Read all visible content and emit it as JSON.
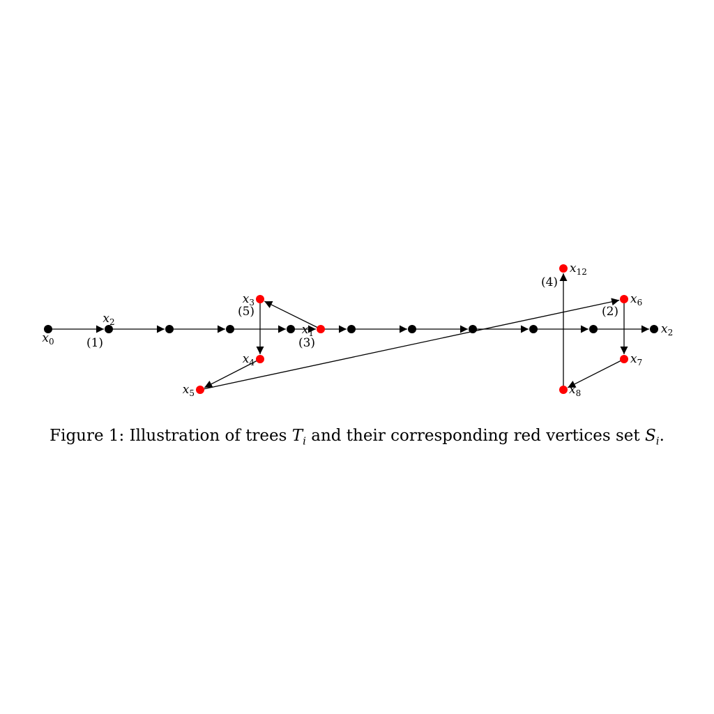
{
  "figure": {
    "caption_prefix": "Figure 1: Illustration of trees ",
    "caption_T": "T",
    "caption_T_sub": "i",
    "caption_middle": " and their corresponding red vertices set ",
    "caption_S": "S",
    "caption_S_sub": "i",
    "caption_suffix": "."
  },
  "colors": {
    "black_vertex": "#000000",
    "red_vertex": "#ff0000",
    "edge": "#000000"
  },
  "vertices": [
    {
      "id": "x0",
      "color": "black",
      "label": "x",
      "sub": "0"
    },
    {
      "id": "b1",
      "color": "black",
      "label": "x",
      "sub": "2"
    },
    {
      "id": "b2",
      "color": "black",
      "label": "",
      "sub": ""
    },
    {
      "id": "b3",
      "color": "black",
      "label": "",
      "sub": ""
    },
    {
      "id": "b4",
      "color": "black",
      "label": "",
      "sub": ""
    },
    {
      "id": "r1",
      "color": "red",
      "label": "x",
      "sub": "1"
    },
    {
      "id": "b5",
      "color": "black",
      "label": "",
      "sub": ""
    },
    {
      "id": "b6",
      "color": "black",
      "label": "",
      "sub": ""
    },
    {
      "id": "b7",
      "color": "black",
      "label": "",
      "sub": ""
    },
    {
      "id": "b8",
      "color": "black",
      "label": "",
      "sub": ""
    },
    {
      "id": "b9",
      "color": "black",
      "label": "",
      "sub": ""
    },
    {
      "id": "b10",
      "color": "black",
      "label": "x",
      "sub": "2"
    },
    {
      "id": "x3",
      "color": "red",
      "label": "x",
      "sub": "3"
    },
    {
      "id": "x4",
      "color": "red",
      "label": "x",
      "sub": "4"
    },
    {
      "id": "x5",
      "color": "red",
      "label": "x",
      "sub": "5"
    },
    {
      "id": "x6",
      "color": "red",
      "label": "x",
      "sub": "6"
    },
    {
      "id": "x7",
      "color": "red",
      "label": "x",
      "sub": "7"
    },
    {
      "id": "x8",
      "color": "red",
      "label": "x",
      "sub": "8"
    },
    {
      "id": "x12",
      "color": "red",
      "label": "x",
      "sub": "12"
    }
  ],
  "edges": [
    {
      "from": "x0",
      "to": "b1",
      "label": "(1)"
    },
    {
      "from": "b1",
      "to": "b2",
      "label": ""
    },
    {
      "from": "b2",
      "to": "b3",
      "label": ""
    },
    {
      "from": "b3",
      "to": "b4",
      "label": ""
    },
    {
      "from": "b4",
      "to": "r1",
      "label": ""
    },
    {
      "from": "r1",
      "to": "b5",
      "label": "(3)"
    },
    {
      "from": "b5",
      "to": "b6",
      "label": ""
    },
    {
      "from": "b6",
      "to": "b7",
      "label": ""
    },
    {
      "from": "b7",
      "to": "b8",
      "label": ""
    },
    {
      "from": "b8",
      "to": "b9",
      "label": ""
    },
    {
      "from": "b9",
      "to": "b10",
      "label": ""
    },
    {
      "from": "r1",
      "to": "x3",
      "label": ""
    },
    {
      "from": "x3",
      "to": "x4",
      "label": "(5)"
    },
    {
      "from": "x4",
      "to": "x5",
      "label": ""
    },
    {
      "from": "x5",
      "to": "x6",
      "label": ""
    },
    {
      "from": "x6",
      "to": "x7",
      "label": "(2)"
    },
    {
      "from": "x7",
      "to": "x8",
      "label": ""
    },
    {
      "from": "x8",
      "to": "x12",
      "label": "(4)"
    }
  ]
}
